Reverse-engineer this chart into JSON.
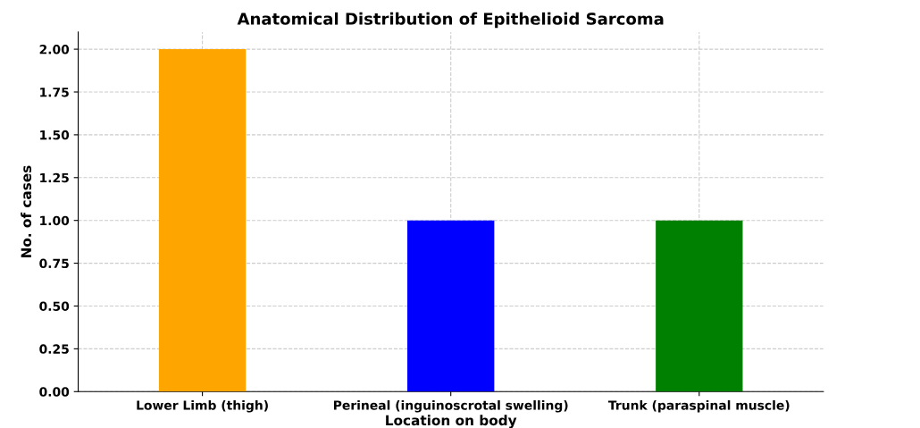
{
  "chart_data": {
    "type": "bar",
    "title": "Anatomical Distribution of Epithelioid Sarcoma",
    "xlabel": "Location on body",
    "ylabel": "No. of cases",
    "categories": [
      "Lower Limb (thigh)",
      "Perineal (inguinoscrotal swelling)",
      "Trunk (paraspinal muscle)"
    ],
    "values": [
      2,
      1,
      1
    ],
    "colors": [
      "#ffa500",
      "#0000ff",
      "#008000"
    ],
    "ylim": [
      0,
      2.1
    ],
    "yticks": [
      {
        "value": 0,
        "label": "0.00"
      },
      {
        "value": 0.25,
        "label": "0.25"
      },
      {
        "value": 0.5,
        "label": "0.50"
      },
      {
        "value": 0.75,
        "label": "0.75"
      },
      {
        "value": 1,
        "label": "1.00"
      },
      {
        "value": 1.25,
        "label": "1.25"
      },
      {
        "value": 1.5,
        "label": "1.50"
      },
      {
        "value": 1.75,
        "label": "1.75"
      },
      {
        "value": 2,
        "label": "2.00"
      }
    ],
    "grid": true
  }
}
